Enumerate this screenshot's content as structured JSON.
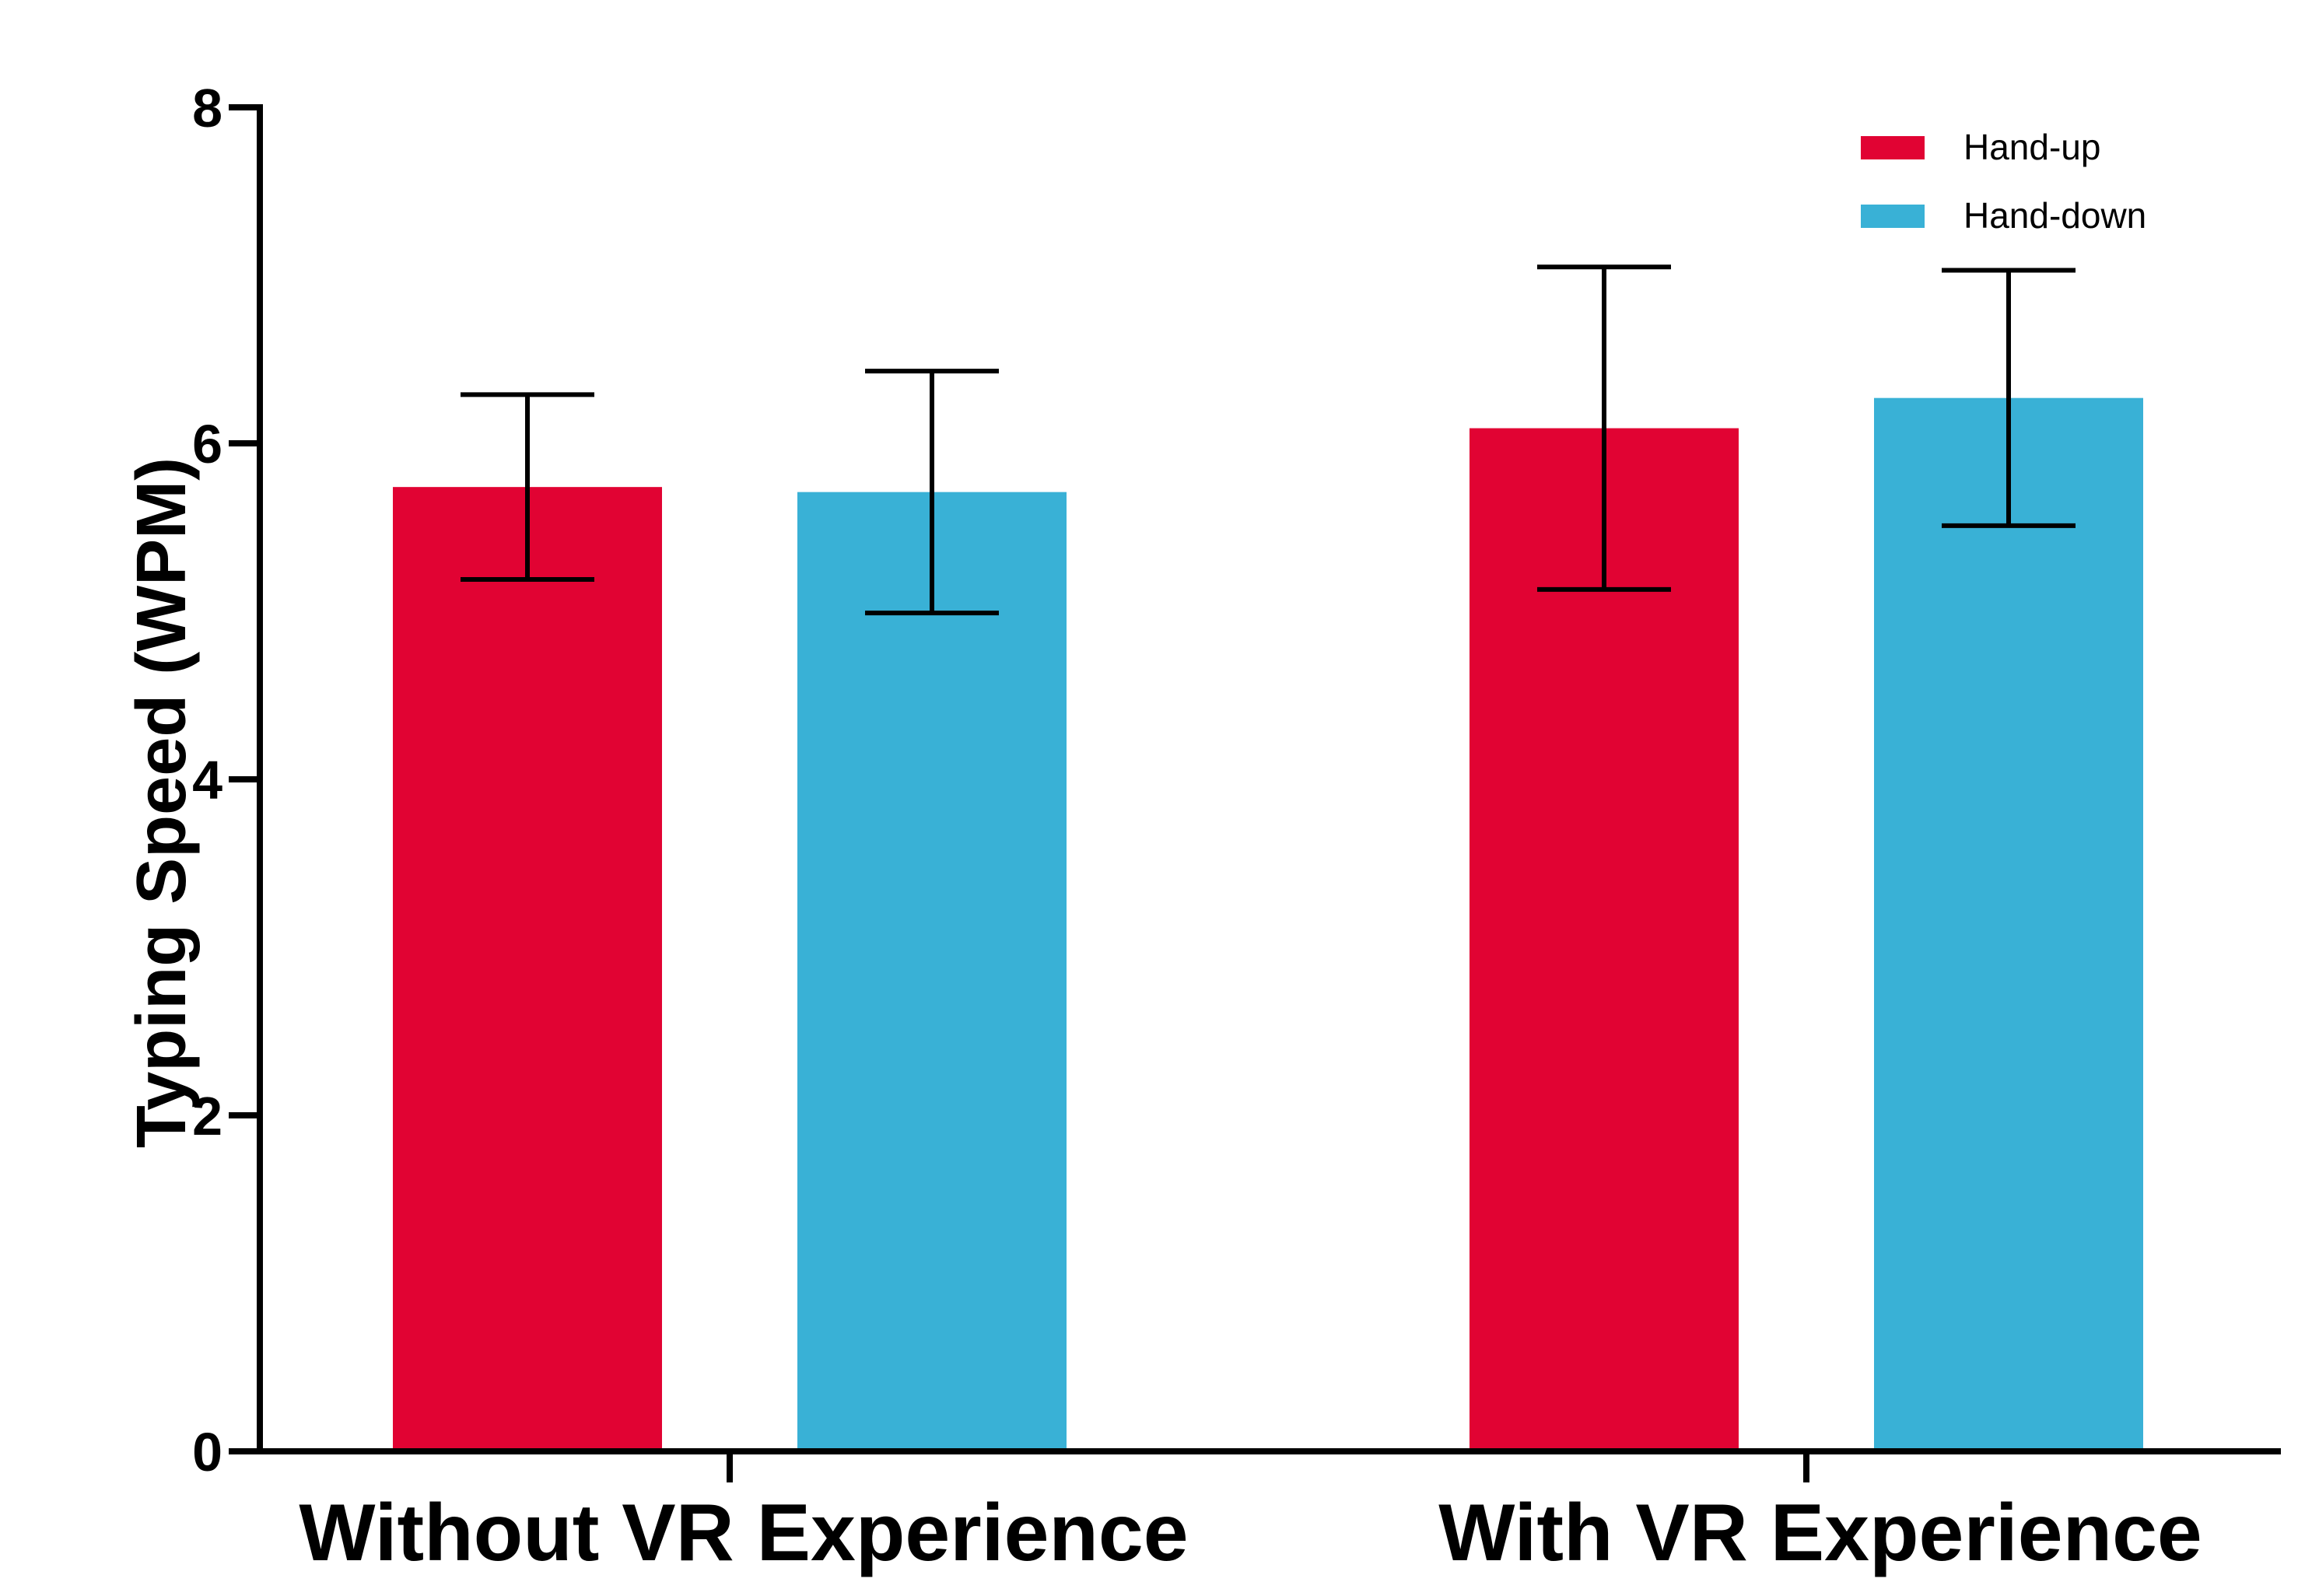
{
  "chart_data": {
    "type": "bar",
    "title": "",
    "xlabel": "",
    "ylabel": "Typing Speed (WPM)",
    "ylim": [
      0,
      8
    ],
    "yticks": [
      0,
      2,
      4,
      6,
      8
    ],
    "categories": [
      "Without VR Experience",
      "With VR Experience"
    ],
    "series": [
      {
        "name": "Hand-up",
        "color": "#e10333",
        "values": [
          5.74,
          6.09
        ],
        "error": [
          0.55,
          0.96
        ]
      },
      {
        "name": "Hand-down",
        "color": "#39b1d6",
        "values": [
          5.71,
          6.27
        ],
        "error": [
          0.72,
          0.76
        ]
      }
    ],
    "legend_position": "top-right",
    "grid": false
  }
}
